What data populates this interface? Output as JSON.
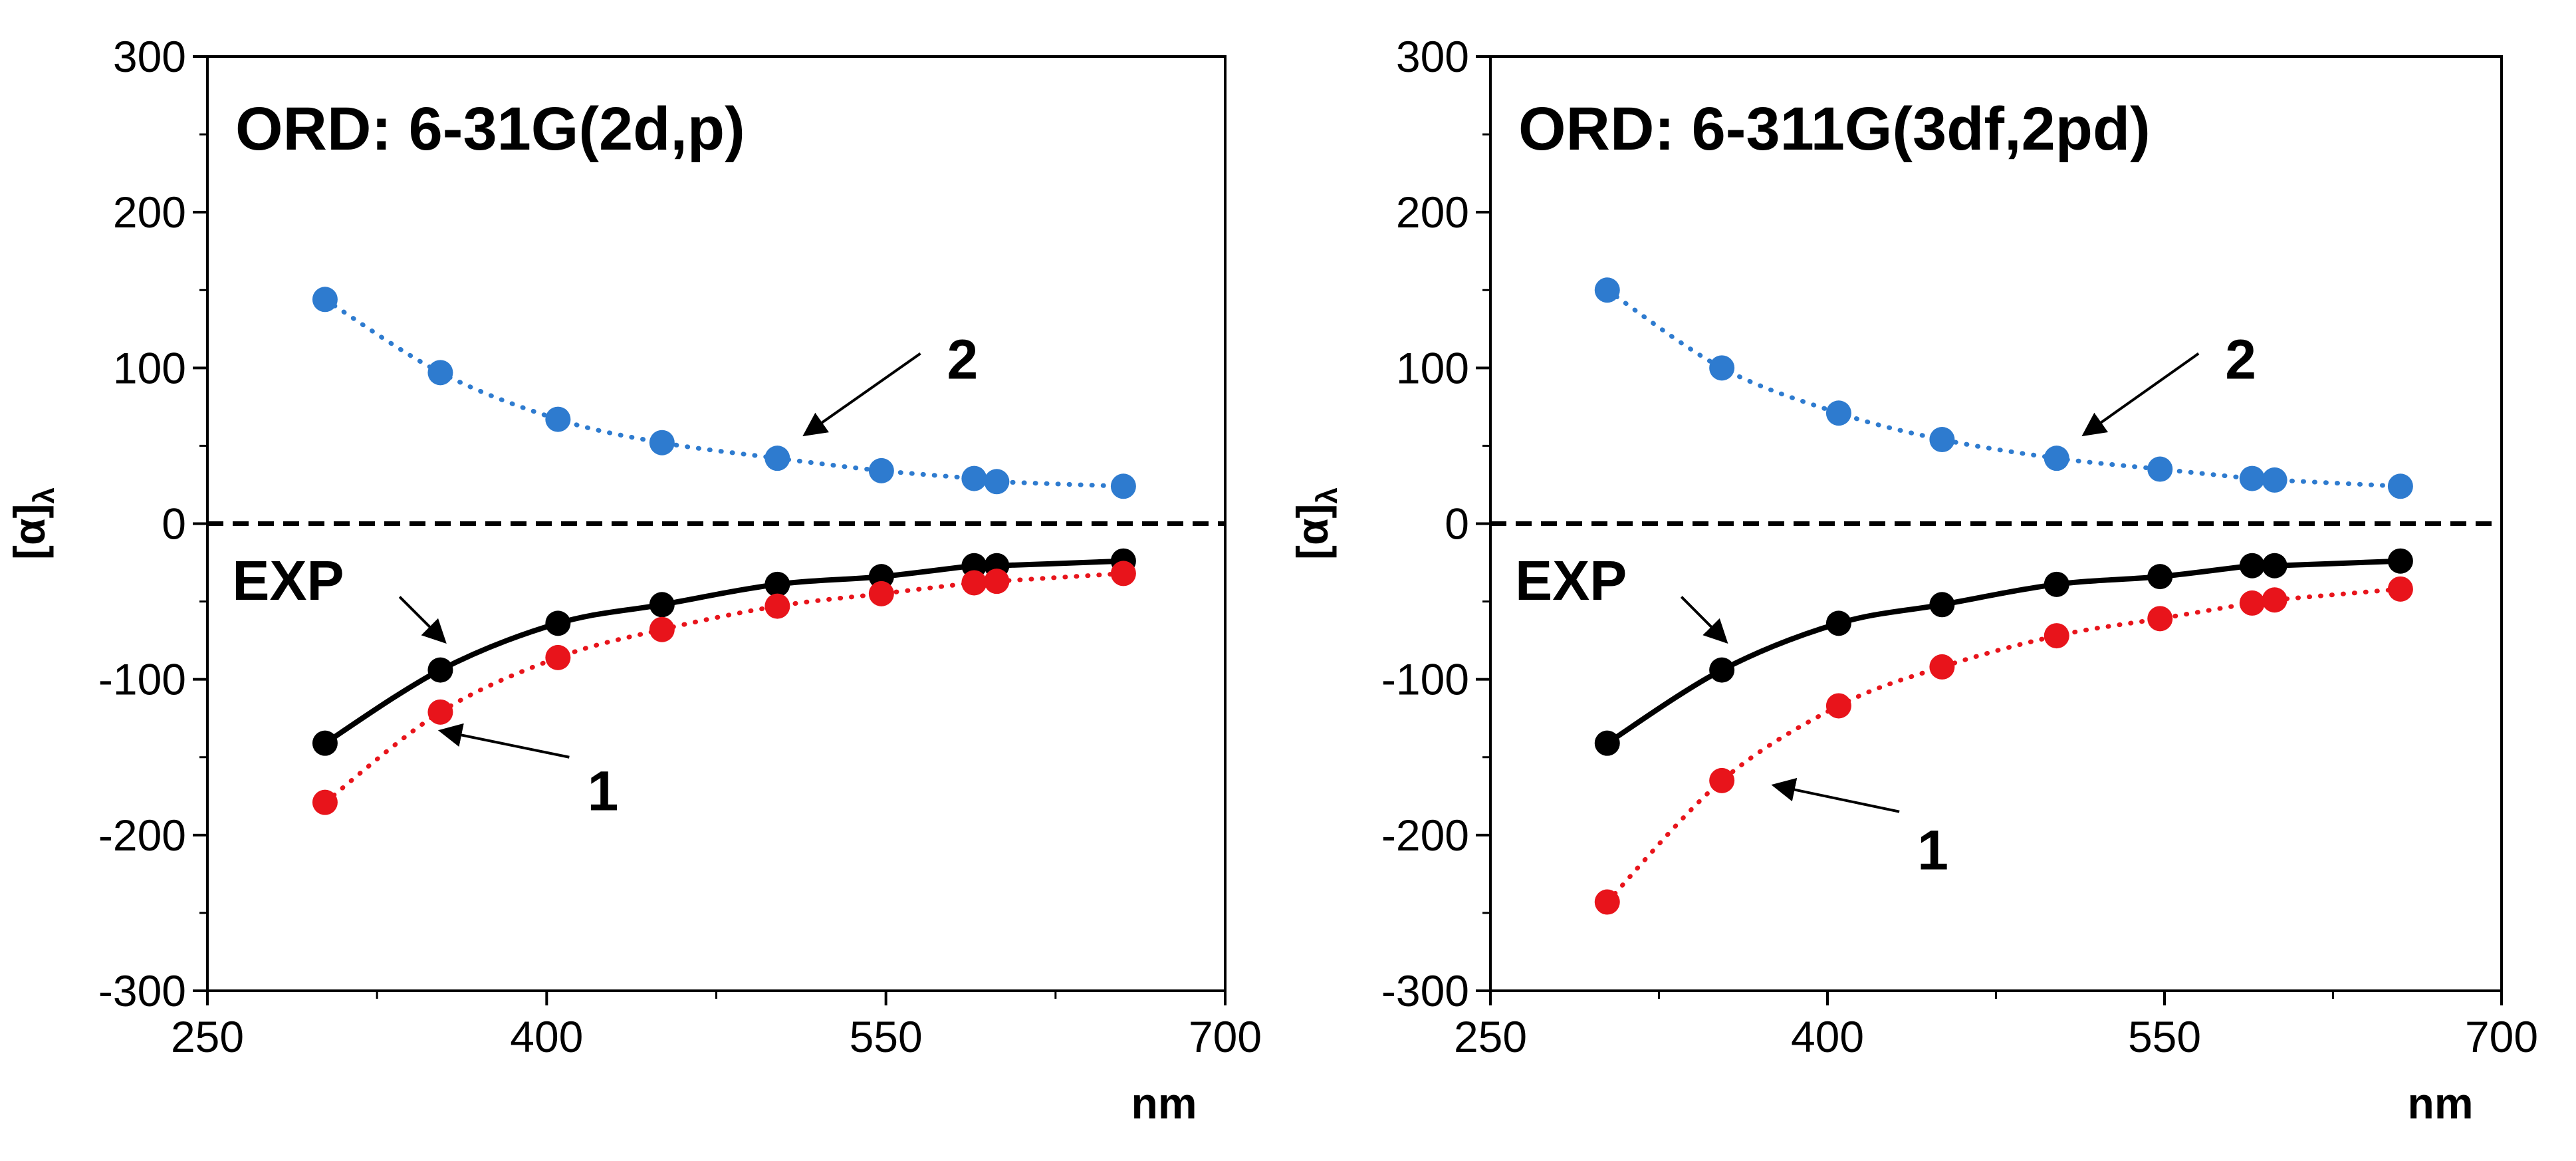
{
  "figure": {
    "description_hidden": false
  },
  "chart_data": [
    {
      "type": "line",
      "title": "ORD: 6-31G(2d,p)",
      "xlabel": "nm",
      "ylabel": "[α]λ",
      "ylabel_main": "[α]",
      "ylabel_sub": "λ",
      "xlim": [
        250,
        700
      ],
      "ylim": [
        -300,
        300
      ],
      "xticks": [
        250,
        400,
        550,
        700
      ],
      "xticks_minor": [
        325,
        475,
        625
      ],
      "yticks": [
        -300,
        -200,
        -100,
        0,
        100,
        200,
        300
      ],
      "yticks_minor": [
        -250,
        -150,
        -50,
        50,
        150,
        250
      ],
      "zero_line": true,
      "series": [
        {
          "name": "2",
          "color": "#2E7BCF",
          "style": "dotted",
          "x": [
            302,
            353,
            405,
            451,
            502,
            548,
            589,
            599,
            655
          ],
          "y": [
            144,
            97,
            67,
            52,
            42,
            34,
            29,
            27,
            24
          ]
        },
        {
          "name": "EXP",
          "color": "#000000",
          "style": "solid",
          "x": [
            302,
            353,
            405,
            451,
            502,
            548,
            589,
            599,
            655
          ],
          "y": [
            -141,
            -94,
            -64,
            -52,
            -39,
            -34,
            -27,
            -27,
            -24
          ]
        },
        {
          "name": "1",
          "color": "#E8141B",
          "style": "dotted",
          "x": [
            302,
            353,
            405,
            451,
            502,
            548,
            589,
            599,
            655
          ],
          "y": [
            -179,
            -121,
            -86,
            -68,
            -53,
            -45,
            -38,
            -37,
            -32
          ]
        }
      ],
      "annotations": [
        {
          "text": "2",
          "x": 577,
          "y": 105,
          "arrow_to": [
            514,
            57
          ]
        },
        {
          "text": "EXP",
          "x": 261,
          "y": -37,
          "arrow_from": [
            335,
            -47
          ],
          "arrow_to": [
            355,
            -76
          ]
        },
        {
          "text": "1",
          "x": 418,
          "y": -172,
          "arrow_from": [
            410,
            -150
          ],
          "arrow_to": [
            353,
            -133
          ]
        }
      ]
    },
    {
      "type": "line",
      "title": "ORD: 6-311G(3df,2pd)",
      "xlabel": "nm",
      "ylabel": "[α]λ",
      "ylabel_main": "[α]",
      "ylabel_sub": "λ",
      "xlim": [
        250,
        700
      ],
      "ylim": [
        -300,
        300
      ],
      "xticks": [
        250,
        400,
        550,
        700
      ],
      "xticks_minor": [
        325,
        475,
        625
      ],
      "yticks": [
        -300,
        -200,
        -100,
        0,
        100,
        200,
        300
      ],
      "yticks_minor": [
        -250,
        -150,
        -50,
        50,
        150,
        250
      ],
      "zero_line": true,
      "series": [
        {
          "name": "2",
          "color": "#2E7BCF",
          "style": "dotted",
          "x": [
            302,
            353,
            405,
            451,
            502,
            548,
            589,
            599,
            655
          ],
          "y": [
            150,
            100,
            71,
            54,
            42,
            35,
            29,
            28,
            24
          ]
        },
        {
          "name": "EXP",
          "color": "#000000",
          "style": "solid",
          "x": [
            302,
            353,
            405,
            451,
            502,
            548,
            589,
            599,
            655
          ],
          "y": [
            -141,
            -94,
            -64,
            -52,
            -39,
            -34,
            -27,
            -27,
            -24
          ]
        },
        {
          "name": "1",
          "color": "#E8141B",
          "style": "dotted",
          "x": [
            302,
            353,
            405,
            451,
            502,
            548,
            589,
            599,
            655
          ],
          "y": [
            -243,
            -165,
            -117,
            -92,
            -72,
            -61,
            -51,
            -49,
            -42
          ]
        }
      ],
      "annotations": [
        {
          "text": "2",
          "x": 577,
          "y": 105,
          "arrow_to": [
            514,
            57
          ]
        },
        {
          "text": "EXP",
          "x": 261,
          "y": -37,
          "arrow_from": [
            335,
            -47
          ],
          "arrow_to": [
            355,
            -76
          ]
        },
        {
          "text": "1",
          "x": 440,
          "y": -210,
          "arrow_from": [
            432,
            -185
          ],
          "arrow_to": [
            376,
            -168
          ]
        }
      ]
    }
  ]
}
